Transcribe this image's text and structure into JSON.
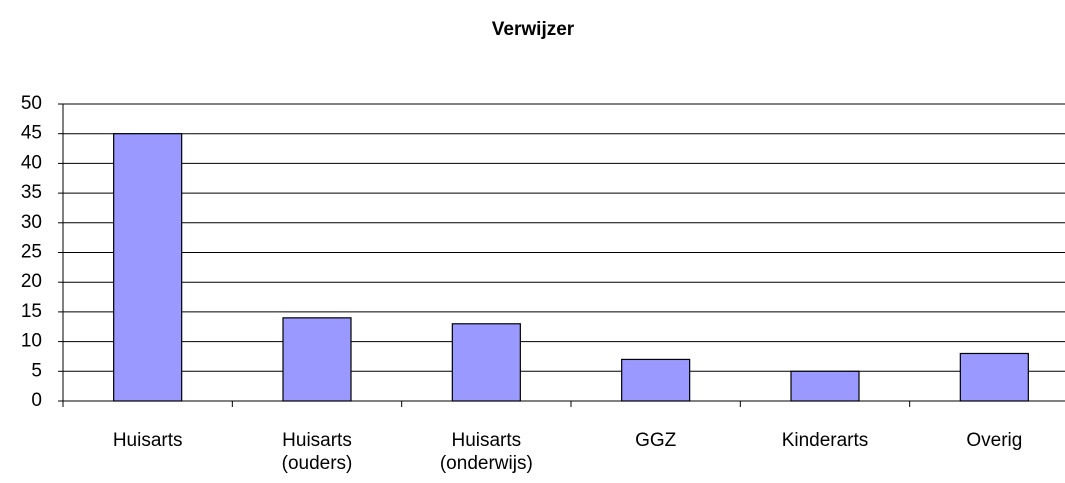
{
  "chart_data": {
    "type": "bar",
    "title": "Verwijzer",
    "categories": [
      [
        "Huisarts"
      ],
      [
        "Huisarts",
        "(ouders)"
      ],
      [
        "Huisarts",
        "(onderwijs)"
      ],
      [
        "GGZ"
      ],
      [
        "Kinderarts"
      ],
      [
        "Overig"
      ]
    ],
    "values": [
      45,
      14,
      13,
      7,
      5,
      8
    ],
    "color": "#9999ff",
    "ylim": [
      0,
      50
    ],
    "yticks": [
      0,
      5,
      10,
      15,
      20,
      25,
      30,
      35,
      40,
      45,
      50
    ],
    "grid": true
  }
}
